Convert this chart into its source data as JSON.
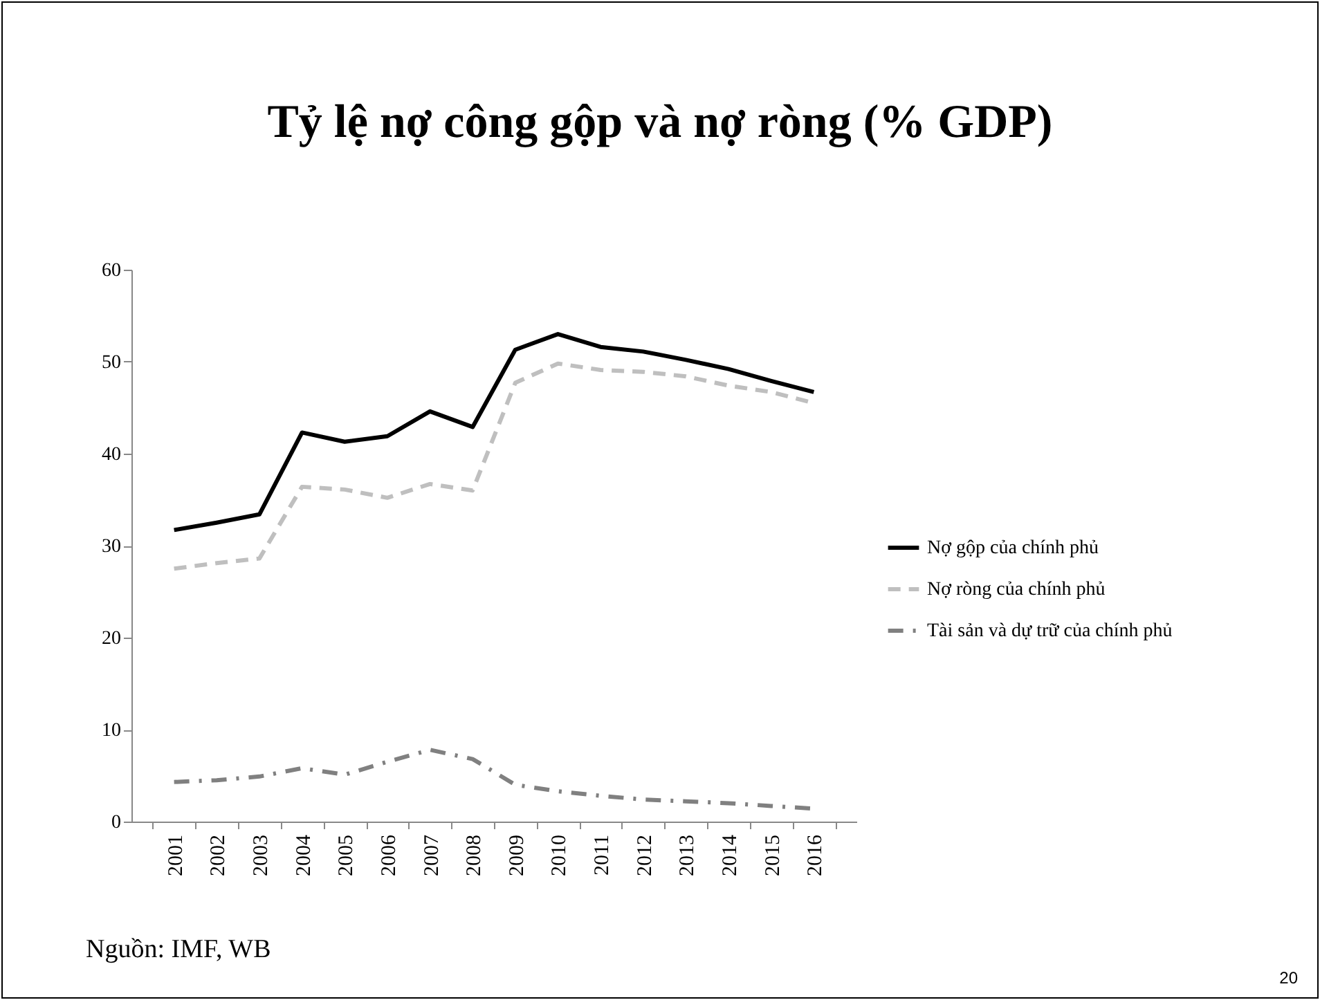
{
  "chart_data": {
    "type": "line",
    "title": "Tỷ lệ nợ công gộp và nợ ròng (% GDP)",
    "categories": [
      "2001",
      "2002",
      "2003",
      "2004",
      "2005",
      "2006",
      "2007",
      "2008",
      "2009",
      "2010",
      "2011",
      "2012",
      "2013",
      "2014",
      "2015",
      "2016"
    ],
    "series": [
      {
        "name": "Nợ gộp của chính phủ",
        "color": "#000000",
        "line_style": "solid",
        "values": [
          31.7,
          32.5,
          33.4,
          42.3,
          41.3,
          41.9,
          44.6,
          42.9,
          51.3,
          53.0,
          51.6,
          51.1,
          50.2,
          49.2,
          47.9,
          46.7
        ]
      },
      {
        "name": "Nợ ròng của chính phủ",
        "color": "#bfbfbf",
        "line_style": "dashed",
        "values": [
          27.5,
          28.1,
          28.6,
          36.4,
          36.1,
          35.2,
          36.7,
          36.0,
          47.7,
          49.8,
          49.1,
          48.9,
          48.4,
          47.4,
          46.7,
          45.5
        ]
      },
      {
        "name": "Tài sản và dự trữ của chính phủ",
        "color": "#808080",
        "line_style": "dashdot",
        "values": [
          4.3,
          4.5,
          4.9,
          5.8,
          5.1,
          6.5,
          7.8,
          6.8,
          4.0,
          3.3,
          2.8,
          2.4,
          2.2,
          2.0,
          1.7,
          1.4
        ]
      }
    ],
    "ylim": [
      0,
      60
    ],
    "yticks": [
      0,
      10,
      20,
      30,
      40,
      50,
      60
    ],
    "grid": false,
    "legend": "right",
    "annotations": [
      "Nguồn: IMF, WB",
      "20"
    ]
  }
}
